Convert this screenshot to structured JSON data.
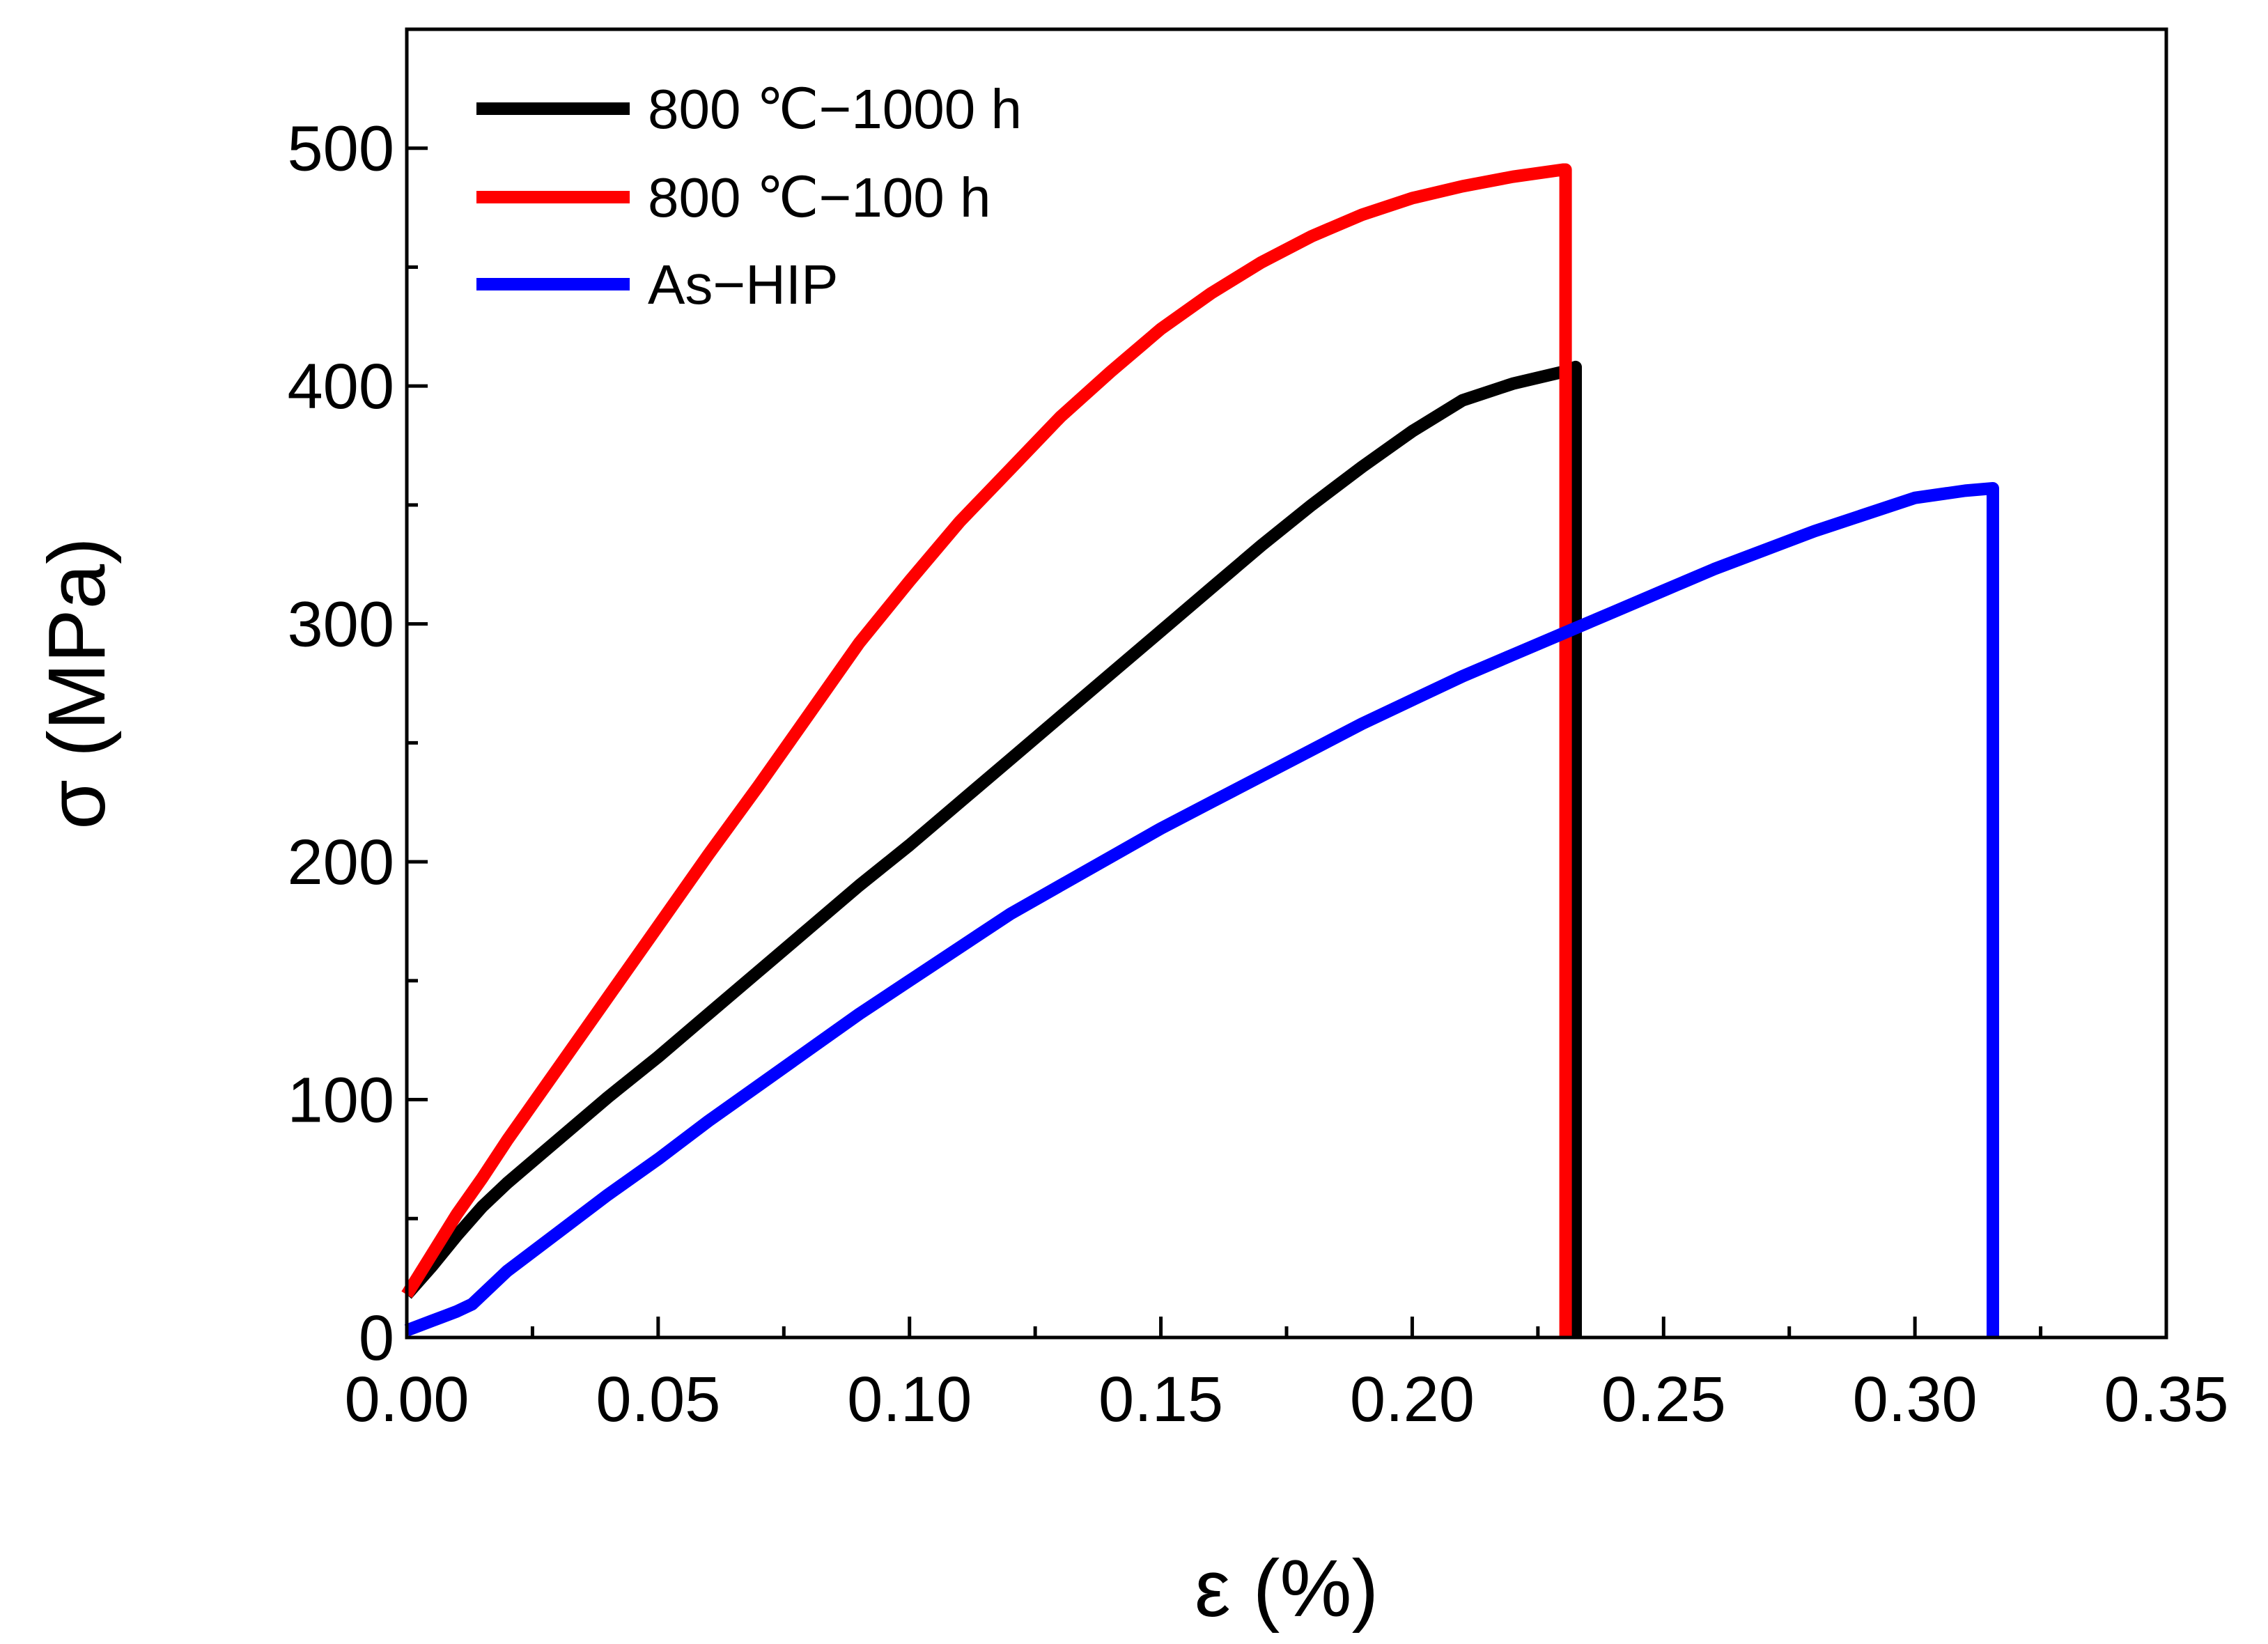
{
  "chart_data": {
    "type": "line",
    "title": "",
    "xlabel": "ε (%)",
    "ylabel": "σ (MPa)",
    "xlim": [
      0,
      0.35
    ],
    "ylim": [
      0,
      550
    ],
    "x_ticks": [
      0.0,
      0.05,
      0.1,
      0.15,
      0.2,
      0.25,
      0.3,
      0.35
    ],
    "x_tick_labels": [
      "0.00",
      "0.05",
      "0.10",
      "0.15",
      "0.20",
      "0.25",
      "0.30",
      "0.35"
    ],
    "x_minor_ticks": [
      0.025,
      0.075,
      0.125,
      0.175,
      0.225,
      0.275,
      0.325
    ],
    "y_ticks": [
      0,
      100,
      200,
      300,
      400,
      500
    ],
    "y_tick_labels": [
      "0",
      "100",
      "200",
      "300",
      "400",
      "500"
    ],
    "y_minor_ticks": [
      50,
      150,
      250,
      350,
      450
    ],
    "grid": false,
    "legend_position": "top-left",
    "series": [
      {
        "name": "800 ℃−1000 h",
        "color": "#000000",
        "x": [
          0.0,
          0.005,
          0.01,
          0.015,
          0.02,
          0.03,
          0.04,
          0.05,
          0.06,
          0.07,
          0.08,
          0.09,
          0.1,
          0.11,
          0.12,
          0.13,
          0.14,
          0.15,
          0.16,
          0.17,
          0.18,
          0.19,
          0.2,
          0.21,
          0.22,
          0.23,
          0.2325,
          0.2325
        ],
        "y": [
          18,
          30,
          43,
          55,
          65,
          83,
          101,
          118,
          136,
          154,
          172,
          190,
          207,
          225,
          243,
          261,
          279,
          297,
          315,
          333,
          350,
          366,
          381,
          394,
          401,
          406,
          408,
          0
        ]
      },
      {
        "name": "800 ℃−100 h",
        "color": "#ff0000",
        "x": [
          0.0,
          0.005,
          0.01,
          0.015,
          0.02,
          0.03,
          0.04,
          0.05,
          0.06,
          0.07,
          0.08,
          0.09,
          0.1,
          0.11,
          0.12,
          0.13,
          0.14,
          0.15,
          0.16,
          0.17,
          0.18,
          0.19,
          0.2,
          0.21,
          0.22,
          0.23,
          0.2305,
          0.2305
        ],
        "y": [
          18,
          35,
          52,
          67,
          83,
          113,
          143,
          173,
          203,
          232,
          262,
          292,
          318,
          343,
          365,
          387,
          406,
          424,
          439,
          452,
          463,
          472,
          479,
          484,
          488,
          491,
          491,
          0
        ]
      },
      {
        "name": "As−HIP",
        "color": "#0000ff",
        "x": [
          0.0,
          0.005,
          0.01,
          0.013,
          0.02,
          0.03,
          0.04,
          0.05,
          0.06,
          0.07,
          0.08,
          0.09,
          0.1,
          0.11,
          0.12,
          0.13,
          0.14,
          0.15,
          0.16,
          0.17,
          0.18,
          0.19,
          0.2,
          0.21,
          0.22,
          0.23,
          0.24,
          0.25,
          0.26,
          0.27,
          0.28,
          0.29,
          0.3,
          0.31,
          0.3155,
          0.3155
        ],
        "y": [
          3,
          7,
          11,
          14,
          28,
          44,
          60,
          75,
          91,
          106,
          121,
          136,
          150,
          164,
          178,
          190,
          202,
          214,
          225,
          236,
          247,
          258,
          268,
          278,
          287,
          296,
          305,
          314,
          323,
          331,
          339,
          346,
          353,
          356,
          357,
          0
        ]
      }
    ]
  }
}
